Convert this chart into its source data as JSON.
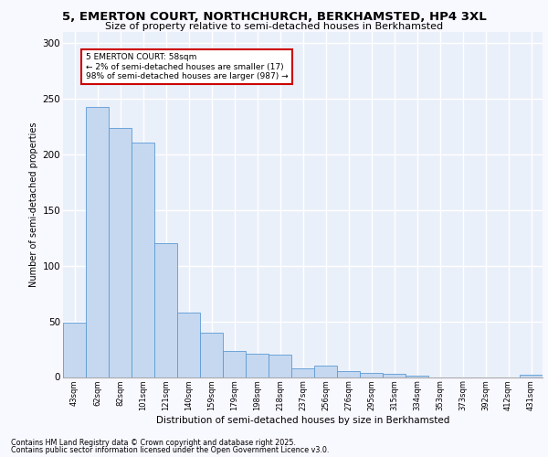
{
  "title1": "5, EMERTON COURT, NORTHCHURCH, BERKHAMSTED, HP4 3XL",
  "title2": "Size of property relative to semi-detached houses in Berkhamsted",
  "xlabel": "Distribution of semi-detached houses by size in Berkhamsted",
  "ylabel": "Number of semi-detached properties",
  "categories": [
    "43sqm",
    "62sqm",
    "82sqm",
    "101sqm",
    "121sqm",
    "140sqm",
    "159sqm",
    "179sqm",
    "198sqm",
    "218sqm",
    "237sqm",
    "256sqm",
    "276sqm",
    "295sqm",
    "315sqm",
    "334sqm",
    "353sqm",
    "373sqm",
    "392sqm",
    "412sqm",
    "431sqm"
  ],
  "values": [
    49,
    243,
    224,
    211,
    120,
    58,
    40,
    23,
    21,
    20,
    8,
    10,
    5,
    4,
    3,
    1,
    0,
    0,
    0,
    0,
    2
  ],
  "bar_color": "#c5d8f0",
  "bar_edge_color": "#5b9bd5",
  "annotation_title": "5 EMERTON COURT: 58sqm",
  "annotation_line1": "← 2% of semi-detached houses are smaller (17)",
  "annotation_line2": "98% of semi-detached houses are larger (987) →",
  "annotation_box_color": "#ffffff",
  "annotation_box_edge": "#cc0000",
  "ylim": [
    0,
    310
  ],
  "yticks": [
    0,
    50,
    100,
    150,
    200,
    250,
    300
  ],
  "bg_color": "#eaf0fa",
  "grid_color": "#ffffff",
  "fig_bg": "#f8f8ff",
  "footer1": "Contains HM Land Registry data © Crown copyright and database right 2025.",
  "footer2": "Contains public sector information licensed under the Open Government Licence v3.0."
}
